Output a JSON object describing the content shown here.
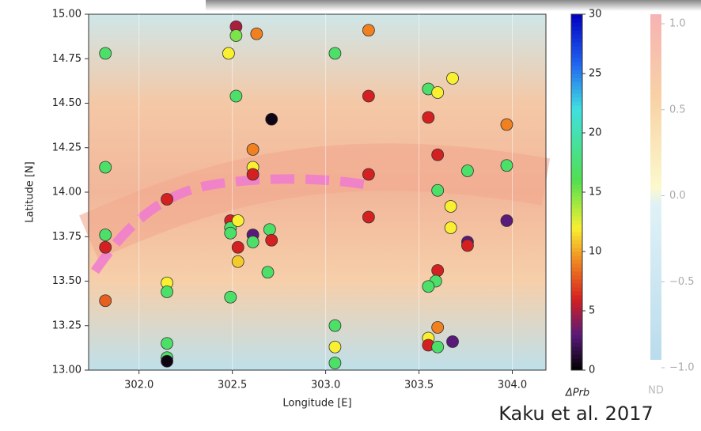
{
  "chart_data": {
    "type": "scatter",
    "xlabel": "Longitude [E]",
    "ylabel": "Latitude [N]",
    "xlim": [
      301.73,
      304.18
    ],
    "ylim": [
      13.0,
      15.0
    ],
    "xticks": [
      {
        "value": 302,
        "label": "302.0"
      },
      302.5,
      {
        "value": 303,
        "label": "303.0"
      },
      303.5,
      {
        "value": 304,
        "label": "304.0"
      }
    ],
    "yticks": [
      {
        "value": 13,
        "label": "13.00"
      },
      13.25,
      {
        "value": 13.5,
        "label": "13.50"
      },
      13.75,
      {
        "value": 14,
        "label": "14.00"
      },
      14.25,
      {
        "value": 14.5,
        "label": "14.50"
      },
      14.75,
      {
        "value": 15,
        "label": "15.00"
      }
    ],
    "x": [
      301.82,
      301.82,
      301.82,
      301.82,
      301.82,
      302.15,
      302.15,
      302.15,
      302.15,
      302.15,
      302.15,
      302.52,
      302.52,
      302.63,
      302.48,
      302.52,
      302.71,
      302.61,
      302.61,
      302.61,
      302.49,
      302.49,
      302.49,
      302.53,
      302.53,
      302.53,
      302.61,
      302.61,
      302.7,
      302.71,
      302.69,
      302.49,
      303.05,
      303.23,
      303.23,
      303.23,
      303.23,
      303.05,
      303.05,
      303.05,
      303.55,
      303.6,
      303.68,
      303.55,
      303.6,
      303.6,
      303.76,
      303.67,
      303.67,
      303.76,
      303.76,
      303.97,
      303.97,
      303.97,
      303.6,
      303.59,
      303.55,
      303.6,
      303.55,
      303.55,
      303.6,
      303.68
    ],
    "y": [
      14.78,
      14.14,
      13.76,
      13.69,
      13.39,
      13.96,
      13.49,
      13.44,
      13.15,
      13.07,
      13.05,
      14.93,
      14.88,
      14.89,
      14.78,
      14.54,
      14.41,
      14.24,
      14.14,
      14.1,
      13.84,
      13.8,
      13.77,
      13.84,
      13.69,
      13.61,
      13.76,
      13.72,
      13.79,
      13.73,
      13.55,
      13.41,
      14.78,
      14.91,
      14.54,
      14.1,
      13.86,
      13.25,
      13.13,
      13.04,
      14.58,
      14.56,
      14.64,
      14.42,
      14.21,
      14.01,
      14.12,
      13.92,
      13.8,
      13.72,
      13.7,
      14.38,
      14.15,
      13.84,
      13.56,
      13.5,
      13.47,
      13.24,
      13.18,
      13.14,
      13.13,
      13.16
    ],
    "c": [
      17,
      17,
      17,
      6,
      8,
      6,
      12,
      17,
      17,
      17,
      0.5,
      5,
      15,
      9,
      12,
      17,
      0.5,
      9,
      12,
      6,
      6,
      17,
      17,
      12,
      6,
      11,
      3,
      17,
      17,
      6,
      17,
      17,
      17,
      9,
      6,
      6,
      6,
      17,
      12,
      17,
      17,
      12,
      12,
      6,
      6,
      17,
      17,
      12,
      12,
      3,
      6,
      9,
      17,
      3,
      6,
      17,
      17,
      9,
      12,
      6,
      17,
      3
    ],
    "clim": [
      0,
      30
    ],
    "cticks": [
      0,
      5,
      10,
      15,
      20,
      25,
      30
    ],
    "colormap": [
      {
        "value": 0,
        "color": "#000000"
      },
      {
        "value": 3,
        "color": "#5a1a7a"
      },
      {
        "value": 6,
        "color": "#d42020"
      },
      {
        "value": 9,
        "color": "#f08020"
      },
      {
        "value": 12,
        "color": "#f8f030"
      },
      {
        "value": 16,
        "color": "#50e050"
      },
      {
        "value": 22,
        "color": "#40e0e0"
      },
      {
        "value": 26,
        "color": "#2060f0"
      },
      {
        "value": 30,
        "color": "#0000c0"
      }
    ],
    "colorbar_label": "ΔPrb",
    "background_colorbar": {
      "ticks": [
        {
          "value": -1,
          "label": "−1.0"
        },
        {
          "value": -0.5,
          "label": "−0.5"
        },
        {
          "value": 0,
          "label": "0.0"
        },
        0.5,
        {
          "value": 1,
          "label": "1.0"
        }
      ],
      "lim": [
        -1,
        1
      ],
      "nd_label": "ND"
    },
    "annotation": "Kaku et al. 2017"
  }
}
